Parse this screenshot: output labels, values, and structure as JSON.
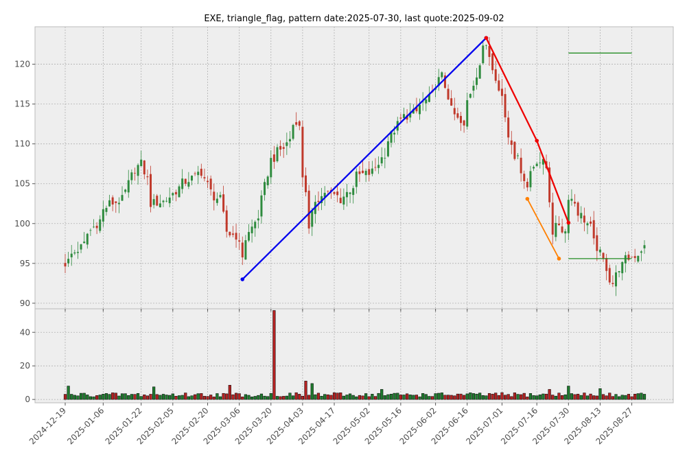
{
  "chart_data": [
    {
      "type": "candlestick",
      "panel": "price",
      "title": "EXE, triangle_flag, pattern date:2025-07-30, last quote:2025-09-02",
      "ylim": [
        89.3,
        124.7
      ],
      "yticks": [
        90,
        95,
        100,
        105,
        110,
        115,
        120
      ],
      "grid": true,
      "background": "#eeeeee",
      "colors": {
        "up": "#2e8b3e",
        "down": "#c0392b",
        "pattern_up": "#0000ee",
        "pattern_down": "#ee0000",
        "flag": "#ff8000",
        "target": "#228b22"
      },
      "x_range": [
        "2024-12-19",
        "2025-09-02"
      ],
      "xticks": [
        "2024-12-19",
        "2025-01-06",
        "2025-01-22",
        "2025-02-05",
        "2025-02-20",
        "2025-03-06",
        "2025-03-20",
        "2025-04-03",
        "2025-04-17",
        "2025-05-02",
        "2025-05-16",
        "2025-06-02",
        "2025-06-16",
        "2025-07-01",
        "2025-07-16",
        "2025-07-30",
        "2025-08-13",
        "2025-08-27"
      ],
      "anchors": [
        {
          "date": "2024-12-19",
          "close": 95.0
        },
        {
          "date": "2024-12-26",
          "close": 97.0
        },
        {
          "date": "2025-01-02",
          "close": 100.0
        },
        {
          "date": "2025-01-08",
          "close": 102.5
        },
        {
          "date": "2025-01-14",
          "close": 103.0
        },
        {
          "date": "2025-01-17",
          "close": 106.0
        },
        {
          "date": "2025-01-22",
          "close": 107.5
        },
        {
          "date": "2025-01-27",
          "close": 102.5
        },
        {
          "date": "2025-02-03",
          "close": 103.0
        },
        {
          "date": "2025-02-07",
          "close": 104.5
        },
        {
          "date": "2025-02-12",
          "close": 105.5
        },
        {
          "date": "2025-02-18",
          "close": 106.5
        },
        {
          "date": "2025-02-21",
          "close": 104.0
        },
        {
          "date": "2025-02-26",
          "close": 103.0
        },
        {
          "date": "2025-02-28",
          "close": 99.0
        },
        {
          "date": "2025-03-05",
          "close": 98.5
        },
        {
          "date": "2025-03-07",
          "close": 96.0
        },
        {
          "date": "2025-03-12",
          "close": 99.5
        },
        {
          "date": "2025-03-17",
          "close": 103.0
        },
        {
          "date": "2025-03-20",
          "close": 108.0
        },
        {
          "date": "2025-03-26",
          "close": 109.5
        },
        {
          "date": "2025-04-01",
          "close": 113.0
        },
        {
          "date": "2025-04-02",
          "close": 112.0
        },
        {
          "date": "2025-04-03",
          "close": 106.0
        },
        {
          "date": "2025-04-07",
          "close": 99.0
        },
        {
          "date": "2025-04-09",
          "close": 103.0
        },
        {
          "date": "2025-04-14",
          "close": 104.0
        },
        {
          "date": "2025-04-21",
          "close": 103.0
        },
        {
          "date": "2025-04-28",
          "close": 106.0
        },
        {
          "date": "2025-05-05",
          "close": 106.5
        },
        {
          "date": "2025-05-12",
          "close": 110.5
        },
        {
          "date": "2025-05-16",
          "close": 113.0
        },
        {
          "date": "2025-05-23",
          "close": 114.0
        },
        {
          "date": "2025-05-30",
          "close": 116.0
        },
        {
          "date": "2025-06-04",
          "close": 118.5
        },
        {
          "date": "2025-06-06",
          "close": 116.0
        },
        {
          "date": "2025-06-11",
          "close": 113.0
        },
        {
          "date": "2025-06-13",
          "close": 112.0
        },
        {
          "date": "2025-06-17",
          "close": 116.5
        },
        {
          "date": "2025-06-20",
          "close": 120.0
        },
        {
          "date": "2025-06-24",
          "close": 122.5
        },
        {
          "date": "2025-06-27",
          "close": 118.5
        },
        {
          "date": "2025-07-01",
          "close": 116.0
        },
        {
          "date": "2025-07-03",
          "close": 111.0
        },
        {
          "date": "2025-07-08",
          "close": 108.0
        },
        {
          "date": "2025-07-11",
          "close": 104.5
        },
        {
          "date": "2025-07-16",
          "close": 108.0
        },
        {
          "date": "2025-07-21",
          "close": 107.0
        },
        {
          "date": "2025-07-23",
          "close": 99.0
        },
        {
          "date": "2025-07-25",
          "close": 100.0
        },
        {
          "date": "2025-07-29",
          "close": 99.0
        },
        {
          "date": "2025-07-30",
          "close": 103.5
        },
        {
          "date": "2025-08-05",
          "close": 101.0
        },
        {
          "date": "2025-08-08",
          "close": 99.5
        },
        {
          "date": "2025-08-12",
          "close": 97.0
        },
        {
          "date": "2025-08-15",
          "close": 94.5
        },
        {
          "date": "2025-08-19",
          "close": 92.5
        },
        {
          "date": "2025-08-21",
          "close": 94.5
        },
        {
          "date": "2025-08-25",
          "close": 95.5
        },
        {
          "date": "2025-08-28",
          "close": 96.0
        },
        {
          "date": "2025-09-02",
          "close": 97.0
        }
      ],
      "pattern_lines": [
        {
          "name": "pole",
          "color": "#0000ee",
          "points": [
            {
              "date": "2025-03-07",
              "y": 93.0
            },
            {
              "date": "2025-06-24",
              "y": 123.3
            }
          ]
        },
        {
          "name": "upper",
          "color": "#ee0000",
          "points": [
            {
              "date": "2025-06-24",
              "y": 123.3
            },
            {
              "date": "2025-07-16",
              "y": 110.4
            },
            {
              "date": "2025-07-30",
              "y": 100.1
            }
          ]
        },
        {
          "name": "lower",
          "color": "#ff8000",
          "points": [
            {
              "date": "2025-07-11",
              "y": 103.1
            },
            {
              "date": "2025-07-25",
              "y": 95.6
            }
          ]
        }
      ],
      "target_lines": [
        {
          "color": "#228b22",
          "y": 121.4,
          "from": "2025-07-30",
          "to": "2025-08-27"
        },
        {
          "color": "#228b22",
          "y": 95.6,
          "from": "2025-07-30",
          "to": "2025-08-27"
        }
      ]
    },
    {
      "type": "bar",
      "panel": "volume",
      "ylim": [
        -2,
        54
      ],
      "yticks": [
        0,
        20,
        40
      ],
      "grid": true,
      "peaks": [
        {
          "date": "2024-12-20",
          "value": 8
        },
        {
          "date": "2025-01-28",
          "value": 7.5
        },
        {
          "date": "2025-03-03",
          "value": 8.5
        },
        {
          "date": "2025-03-21",
          "value": 53
        },
        {
          "date": "2025-04-04",
          "value": 11
        },
        {
          "date": "2025-04-08",
          "value": 9.5
        },
        {
          "date": "2025-05-08",
          "value": 6
        },
        {
          "date": "2025-07-22",
          "value": 6
        },
        {
          "date": "2025-07-30",
          "value": 8
        },
        {
          "date": "2025-08-13",
          "value": 6.5
        }
      ]
    }
  ]
}
